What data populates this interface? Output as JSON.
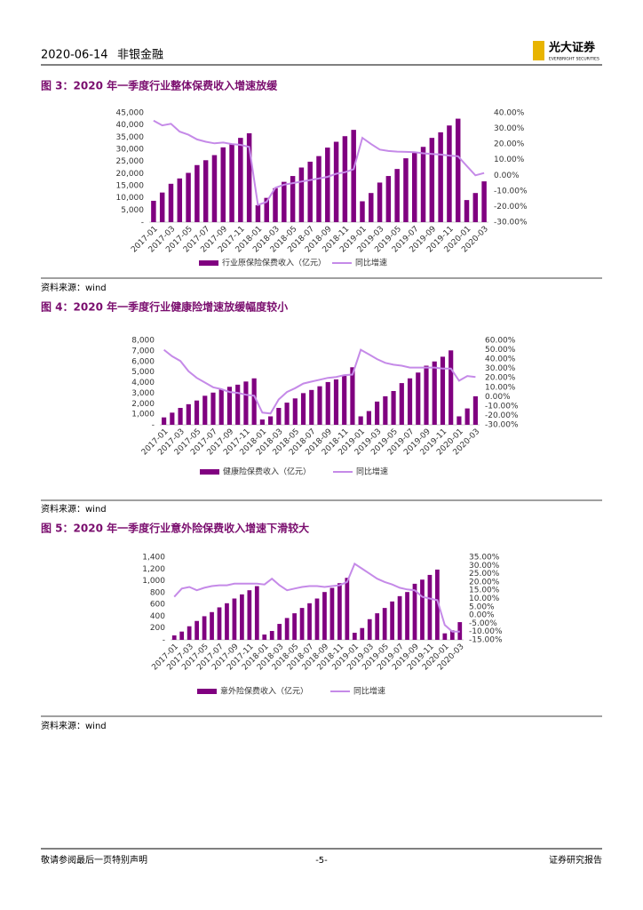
{
  "header": {
    "date": "2020-06-14",
    "sector": "非银金融",
    "logo_cn": "光大证券",
    "logo_en": "EVERBRIGHT SECURITIES"
  },
  "chart_data": [
    {
      "type": "combo",
      "title": "图 3：2020 年一季度行业整体保费收入增速放缓",
      "source": "资料来源：wind",
      "categories": [
        "2017-01",
        null,
        "2017-03",
        null,
        "2017-05",
        null,
        "2017-07",
        null,
        "2017-09",
        null,
        "2017-11",
        null,
        "2018-01",
        null,
        "2018-03",
        null,
        "2018-05",
        null,
        "2018-07",
        null,
        "2018-09",
        null,
        "2018-11",
        null,
        "2019-01",
        null,
        "2019-03",
        null,
        "2019-05",
        null,
        "2019-07",
        null,
        "2019-09",
        null,
        "2019-11",
        null,
        "2020-01",
        null,
        "2020-03"
      ],
      "series": [
        {
          "name": "行业原保险保费收入（亿元）",
          "type": "bar",
          "color": "#800080",
          "values": [
            8800,
            12200,
            15800,
            18000,
            20300,
            23500,
            25500,
            27600,
            30800,
            32300,
            34700,
            36600,
            7000,
            10000,
            14000,
            16600,
            19000,
            22500,
            24900,
            27200,
            30700,
            33100,
            35400,
            38000,
            8600,
            12000,
            16300,
            19000,
            21900,
            26300,
            28500,
            31000,
            34700,
            37000,
            39800,
            42600,
            9100,
            12000,
            16800
          ]
        },
        {
          "name": "同比增速",
          "type": "line",
          "axis": "y2",
          "color": "#c58ae8",
          "values": [
            35,
            32,
            33,
            28,
            26,
            23,
            21.5,
            20.5,
            21,
            20,
            19.5,
            18.2,
            -19,
            -17,
            -8,
            -6,
            -5,
            -4,
            -3,
            -2,
            -1,
            1,
            2,
            3.9,
            24,
            20,
            16.5,
            15.6,
            15.2,
            15,
            14.8,
            14.1,
            13.7,
            13.3,
            12.6,
            12.2,
            6,
            0,
            1.5
          ]
        }
      ],
      "ylim": [
        0,
        45000
      ],
      "yticks": [
        {
          "value": 0,
          "label": "-"
        },
        {
          "value": 5000,
          "label": "5,000"
        },
        {
          "value": 10000,
          "label": "10,000"
        },
        {
          "value": 15000,
          "label": "15,000"
        },
        {
          "value": 20000,
          "label": "20,000"
        },
        {
          "value": 25000,
          "label": "25,000"
        },
        {
          "value": 30000,
          "label": "30,000"
        },
        {
          "value": 35000,
          "label": "35,000"
        },
        {
          "value": 40000,
          "label": "40,000"
        },
        {
          "value": 45000,
          "label": "45,000"
        }
      ],
      "y2lim": [
        -30,
        40
      ],
      "y2ticks": [
        {
          "value": -30,
          "label": "-30.00%"
        },
        {
          "value": -20,
          "label": "-20.00%"
        },
        {
          "value": -10,
          "label": "-10.00%"
        },
        {
          "value": 0,
          "label": "0.00%"
        },
        {
          "value": 10,
          "label": "10.00%"
        },
        {
          "value": 20,
          "label": "20.00%"
        },
        {
          "value": 30,
          "label": "30.00%"
        },
        {
          "value": 40,
          "label": "40.00%"
        }
      ]
    },
    {
      "type": "combo",
      "title": "图 4：2020 年一季度行业健康险增速放缓幅度较小",
      "source": "资料来源：wind",
      "categories": [
        "2017-01",
        null,
        "2017-03",
        null,
        "2017-05",
        null,
        "2017-07",
        null,
        "2017-09",
        null,
        "2017-11",
        null,
        "2018-01",
        null,
        "2018-03",
        null,
        "2018-05",
        null,
        "2018-07",
        null,
        "2018-09",
        null,
        "2018-11",
        null,
        "2019-01",
        null,
        "2019-03",
        null,
        "2019-05",
        null,
        "2019-07",
        null,
        "2019-09",
        null,
        "2019-11",
        null,
        "2020-01",
        null,
        "2020-03"
      ],
      "series": [
        {
          "name": "健康险保费收入（亿元）",
          "type": "bar",
          "color": "#800080",
          "values": [
            700,
            1150,
            1600,
            1950,
            2300,
            2750,
            3050,
            3350,
            3600,
            3800,
            4100,
            4400,
            500,
            800,
            1600,
            2100,
            2500,
            3000,
            3300,
            3650,
            4050,
            4300,
            4650,
            5450,
            800,
            1300,
            2200,
            2700,
            3200,
            3950,
            4400,
            4950,
            5600,
            6000,
            6450,
            7050,
            800,
            1550,
            2700
          ]
        },
        {
          "name": "同比增速",
          "type": "line",
          "axis": "y2",
          "color": "#c58ae8",
          "values": [
            50,
            43,
            38,
            27,
            20,
            15,
            10,
            8,
            5,
            4,
            2,
            1,
            -17,
            -18,
            -3,
            5,
            9,
            14,
            16,
            18,
            20,
            21,
            23,
            23.5,
            50,
            45,
            40,
            36,
            34,
            33,
            31,
            31,
            31,
            31,
            30,
            30,
            17,
            22,
            21
          ]
        }
      ],
      "ylim": [
        0,
        8000
      ],
      "yticks": [
        {
          "value": 0,
          "label": "-"
        },
        {
          "value": 1000,
          "label": "1,000"
        },
        {
          "value": 2000,
          "label": "2,000"
        },
        {
          "value": 3000,
          "label": "3,000"
        },
        {
          "value": 4000,
          "label": "4,000"
        },
        {
          "value": 5000,
          "label": "5,000"
        },
        {
          "value": 6000,
          "label": "6,000"
        },
        {
          "value": 7000,
          "label": "7,000"
        },
        {
          "value": 8000,
          "label": "8,000"
        }
      ],
      "y2lim": [
        -30,
        60
      ],
      "y2ticks": [
        {
          "value": -30,
          "label": "-30.00%"
        },
        {
          "value": -20,
          "label": "-20.00%"
        },
        {
          "value": -10,
          "label": "-10.00%"
        },
        {
          "value": 0,
          "label": "0.00%"
        },
        {
          "value": 10,
          "label": "10.00%"
        },
        {
          "value": 20,
          "label": "20.00%"
        },
        {
          "value": 30,
          "label": "30.00%"
        },
        {
          "value": 40,
          "label": "40.00%"
        },
        {
          "value": 50,
          "label": "50.00%"
        },
        {
          "value": 60,
          "label": "60.00%"
        }
      ]
    },
    {
      "type": "combo",
      "title": "图 5：2020 年一季度行业意外险保费收入增速下滑较大",
      "source": "资料来源：wind",
      "categories": [
        "2017-01",
        null,
        "2017-03",
        null,
        "2017-05",
        null,
        "2017-07",
        null,
        "2017-09",
        null,
        "2017-11",
        null,
        "2018-01",
        null,
        "2018-03",
        null,
        "2018-05",
        null,
        "2018-07",
        null,
        "2018-09",
        null,
        "2018-11",
        null,
        "2019-01",
        null,
        "2019-03",
        null,
        "2019-05",
        null,
        "2019-07",
        null,
        "2019-09",
        null,
        "2019-11",
        null,
        "2020-01",
        null,
        "2020-03"
      ],
      "series": [
        {
          "name": "意外险保费收入（亿元）",
          "type": "bar",
          "color": "#800080",
          "values": [
            75,
            140,
            230,
            320,
            400,
            470,
            550,
            620,
            700,
            770,
            840,
            910,
            90,
            150,
            270,
            370,
            450,
            540,
            620,
            700,
            810,
            880,
            960,
            1050,
            120,
            200,
            350,
            450,
            540,
            650,
            740,
            810,
            950,
            1020,
            1100,
            1190,
            110,
            160,
            300
          ]
        },
        {
          "name": "同比增速",
          "type": "line",
          "axis": "y2",
          "color": "#c58ae8",
          "values": [
            11,
            16,
            17,
            15,
            16.5,
            17.5,
            18,
            18,
            19,
            19,
            19,
            19,
            18.5,
            22,
            18,
            15,
            16,
            17,
            17.5,
            17.5,
            17,
            17.5,
            18,
            20,
            31,
            28,
            25,
            22,
            20,
            18.5,
            16.5,
            15.5,
            15,
            11,
            10,
            9,
            -6,
            -10,
            -10
          ]
        }
      ],
      "ylim": [
        0,
        1400
      ],
      "yticks": [
        {
          "value": 0,
          "label": "-"
        },
        200,
        400,
        600,
        800,
        {
          "value": 1000,
          "label": "1,000"
        },
        {
          "value": 1200,
          "label": "1,200"
        },
        {
          "value": 1400,
          "label": "1,400"
        }
      ],
      "y2lim": [
        -15,
        35
      ],
      "y2ticks": [
        {
          "value": -15,
          "label": "-15.00%"
        },
        {
          "value": -10,
          "label": "-10.00%"
        },
        {
          "value": -5,
          "label": "-5.00%"
        },
        {
          "value": 0,
          "label": "0.00%"
        },
        {
          "value": 5,
          "label": "5.00%"
        },
        {
          "value": 10,
          "label": "10.00%"
        },
        {
          "value": 15,
          "label": "15.00%"
        },
        {
          "value": 20,
          "label": "20.00%"
        },
        {
          "value": 25,
          "label": "25.00%"
        },
        {
          "value": 30,
          "label": "30.00%"
        },
        {
          "value": 35,
          "label": "35.00%"
        }
      ]
    }
  ],
  "footer": {
    "disclaimer": "敬请参阅最后一页特别声明",
    "page": "-5-",
    "report_type": "证券研究报告"
  }
}
